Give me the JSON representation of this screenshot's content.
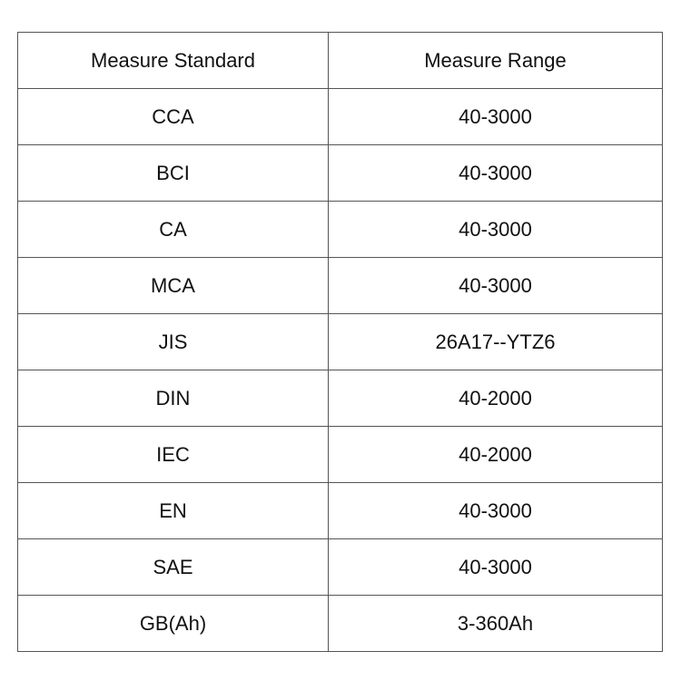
{
  "table": {
    "headers": [
      "Measure Standard",
      "Measure Range"
    ],
    "rows": [
      [
        "CCA",
        "40-3000"
      ],
      [
        "BCI",
        "40-3000"
      ],
      [
        "CA",
        "40-3000"
      ],
      [
        "MCA",
        "40-3000"
      ],
      [
        "JIS",
        "26A17--YTZ6"
      ],
      [
        "DIN",
        "40-2000"
      ],
      [
        "IEC",
        "40-2000"
      ],
      [
        "EN",
        "40-3000"
      ],
      [
        "SAE",
        "40-3000"
      ],
      [
        "GB(Ah)",
        "3-360Ah"
      ]
    ]
  }
}
